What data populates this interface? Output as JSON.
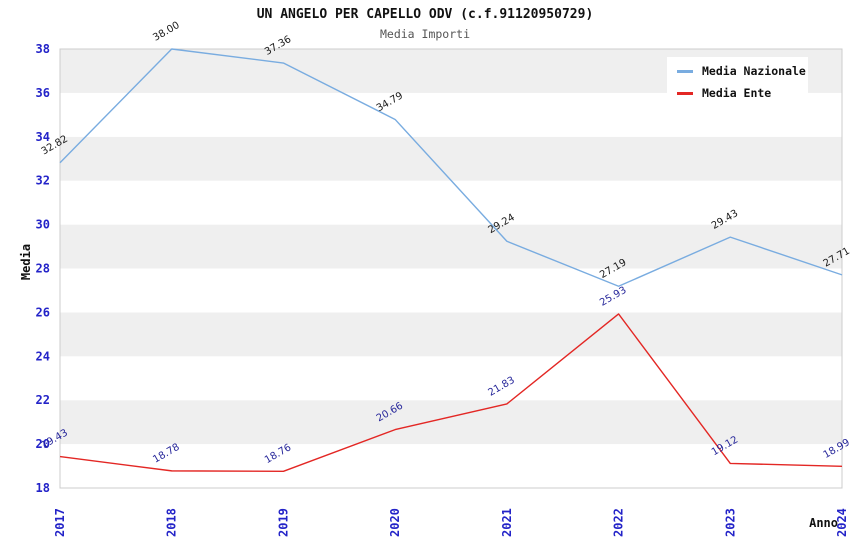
{
  "title": "UN ANGELO PER CAPELLO ODV (c.f.91120950729)",
  "subtitle": "Media Importi",
  "legend": {
    "items": [
      {
        "label": "Media Nazionale",
        "color": "#79ace0"
      },
      {
        "label": "Media Ente",
        "color": "#e32724"
      }
    ]
  },
  "chart_data": {
    "type": "line",
    "title": "UN ANGELO PER CAPELLO ODV (c.f.91120950729)",
    "subtitle": "Media Importi",
    "xlabel": "Anno",
    "ylabel": "Media",
    "x": [
      "2017",
      "2018",
      "2019",
      "2020",
      "2021",
      "2022",
      "2023",
      "2024"
    ],
    "series": [
      {
        "name": "Media Nazionale",
        "color": "#79ace0",
        "label_color": "#1a1a1a",
        "values": [
          32.82,
          38.0,
          37.36,
          34.79,
          29.24,
          27.19,
          29.43,
          27.71
        ]
      },
      {
        "name": "Media Ente",
        "color": "#e32724",
        "label_color": "#26269a",
        "values": [
          19.43,
          18.78,
          18.76,
          20.66,
          21.83,
          25.93,
          19.12,
          18.99
        ]
      }
    ],
    "ylim": [
      18,
      38
    ],
    "ytick_step": 2,
    "yticks": [
      18,
      20,
      22,
      24,
      26,
      28,
      30,
      32,
      34,
      36,
      38
    ],
    "band_colors": {
      "odd": "#efefef",
      "even": "#ffffff"
    },
    "axis_tick_color": "#2323c8",
    "plot_border_color": "#cccccc",
    "grid": "horizontal-bands",
    "legend_position": "top-right",
    "label_format": "2-decimals"
  }
}
